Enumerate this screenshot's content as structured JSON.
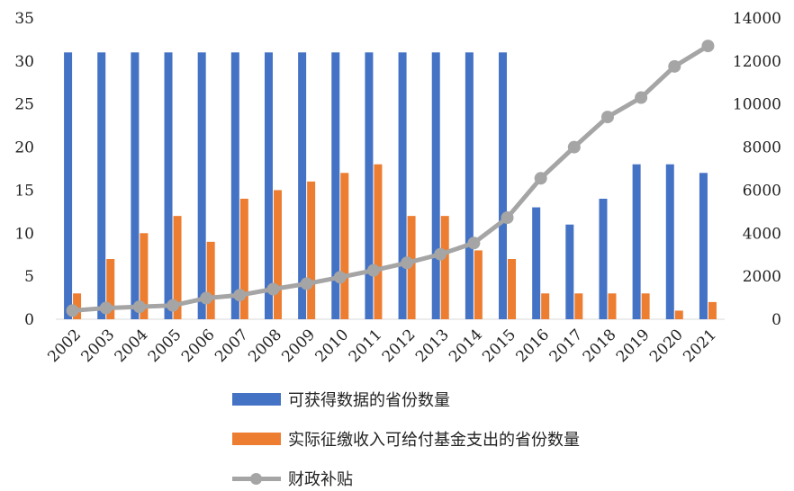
{
  "chart_data": {
    "type": "bar",
    "categories": [
      "2002",
      "2003",
      "2004",
      "2005",
      "2006",
      "2007",
      "2008",
      "2009",
      "2010",
      "2011",
      "2012",
      "2013",
      "2014",
      "2015",
      "2016",
      "2017",
      "2018",
      "2019",
      "2020",
      "2021"
    ],
    "series": [
      {
        "name": "可获得数据的省份数量",
        "type": "bar",
        "axis": "left",
        "color": "#4472c4",
        "values": [
          31,
          31,
          31,
          31,
          31,
          31,
          31,
          31,
          31,
          31,
          31,
          31,
          31,
          31,
          13,
          11,
          14,
          18,
          18,
          17
        ]
      },
      {
        "name": "实际征缴收入可给付基金支出的省份数量",
        "type": "bar",
        "axis": "left",
        "color": "#ed7d31",
        "values": [
          3,
          7,
          10,
          12,
          9,
          14,
          15,
          16,
          17,
          18,
          12,
          12,
          8,
          7,
          3,
          3,
          3,
          3,
          1,
          2
        ]
      },
      {
        "name": "财政补贴",
        "type": "line",
        "axis": "right",
        "color": "#a5a5a5",
        "values": [
          400,
          520,
          580,
          640,
          980,
          1120,
          1400,
          1650,
          1950,
          2270,
          2620,
          3020,
          3540,
          4720,
          6550,
          8000,
          9400,
          10300,
          11750,
          12700
        ]
      }
    ],
    "left_axis": {
      "min": 0,
      "max": 35,
      "ticks": [
        "0",
        "5",
        "10",
        "15",
        "20",
        "25",
        "30",
        "35"
      ]
    },
    "right_axis": {
      "min": 0,
      "max": 14000,
      "ticks": [
        "0",
        "2000",
        "4000",
        "6000",
        "8000",
        "10000",
        "12000",
        "14000"
      ]
    },
    "grid": false,
    "legend_position": "bottom"
  }
}
